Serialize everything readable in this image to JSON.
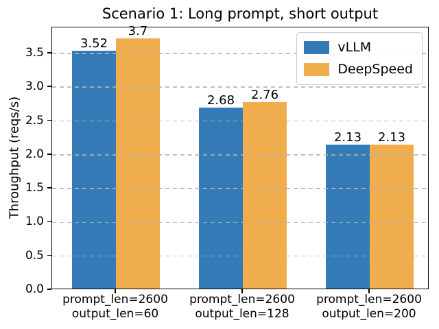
{
  "chart_data": {
    "type": "bar",
    "title": "Scenario 1: Long prompt, short output",
    "xlabel": "",
    "ylabel": "Throughput (reqs/s)",
    "categories": [
      {
        "line1": "prompt_len=2600",
        "line2": "output_len=60"
      },
      {
        "line1": "prompt_len=2600",
        "line2": "output_len=128"
      },
      {
        "line1": "prompt_len=2600",
        "line2": "output_len=200"
      }
    ],
    "series": [
      {
        "name": "vLLM",
        "color": "#337ab7",
        "values": [
          3.52,
          2.68,
          2.13
        ],
        "value_labels": [
          "3.52",
          "2.68",
          "2.13"
        ]
      },
      {
        "name": "DeepSpeed",
        "color": "#f0ad4e",
        "values": [
          3.7,
          2.76,
          2.13
        ],
        "value_labels": [
          "3.7",
          "2.76",
          "2.13"
        ]
      }
    ],
    "yticks": [
      0.0,
      0.5,
      1.0,
      1.5,
      2.0,
      2.5,
      3.0,
      3.5
    ],
    "ytick_labels": [
      "0.0",
      "0.5",
      "1.0",
      "1.5",
      "2.0",
      "2.5",
      "3.0",
      "3.5"
    ],
    "ylim": [
      0,
      3.885
    ],
    "grid": {
      "axis": "y",
      "style": "dashed",
      "color": "#b0b0b0",
      "on_top_of_bars": true
    },
    "legend": {
      "position": "upper right",
      "entries": [
        "vLLM",
        "DeepSpeed"
      ]
    },
    "colors": {
      "vllm_blue": "#337ab7",
      "deepspeed_orange": "#f0ad4e",
      "spine": "#000000",
      "grid": "#b0b0b0"
    }
  }
}
